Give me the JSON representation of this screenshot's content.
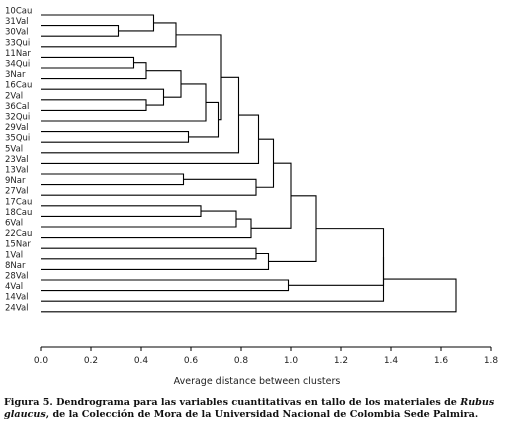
{
  "chart_data": {
    "type": "dendrogram",
    "xlabel": "Average distance between clusters",
    "xlim": [
      0,
      1.8
    ],
    "xticks": [
      "0.0",
      "0.2",
      "0.4",
      "0.6",
      "0.8",
      "1.0",
      "1.2",
      "1.4",
      "1.6",
      "1.8"
    ],
    "leaves": [
      "10Cau",
      "31Val",
      "30Val",
      "33Qui",
      "11Nar",
      "34Qui",
      "3Nar",
      "16Cau",
      "2Val",
      "36Cal",
      "32Qui",
      "29Val",
      "35Qui",
      "5Val",
      "23Val",
      "13Val",
      "9Nar",
      "27Val",
      "17Cau",
      "18Cau",
      "6Val",
      "22Cau",
      "15Nar",
      "1Val",
      "8Nar",
      "28Val",
      "4Val",
      "14Val",
      "24Val"
    ],
    "merges": [
      {
        "id": "m2V36",
        "children": [
          "2Val",
          "36Cal"
        ],
        "height": 0.42
      },
      {
        "id": "m31_30",
        "children": [
          "31Val",
          "30Val"
        ],
        "height": 0.31
      },
      {
        "id": "m11_34",
        "children": [
          "11Nar",
          "34Qui"
        ],
        "height": 0.37
      },
      {
        "id": "m10",
        "children": [
          "10Cau",
          "m31_30"
        ],
        "height": 0.45
      },
      {
        "id": "m3",
        "children": [
          "m11_34",
          "3Nar"
        ],
        "height": 0.42
      },
      {
        "id": "m16",
        "children": [
          "16Cau",
          "m2V36"
        ],
        "height": 0.49
      },
      {
        "id": "mg",
        "children": [
          "m3",
          "m16"
        ],
        "height": 0.56
      },
      {
        "id": "m10b",
        "children": [
          "m10",
          "33Qui"
        ],
        "height": 0.54
      },
      {
        "id": "m29_35",
        "children": [
          "29Val",
          "35Qui"
        ],
        "height": 0.59
      },
      {
        "id": "m13_9",
        "children": [
          "13Val",
          "9Nar"
        ],
        "height": 0.57
      },
      {
        "id": "m17_18",
        "children": [
          "17Cau",
          "18Cau"
        ],
        "height": 0.64
      },
      {
        "id": "mgB",
        "children": [
          "mg",
          "32Qui"
        ],
        "height": 0.66
      },
      {
        "id": "mgC",
        "children": [
          "mgB",
          "m29_35"
        ],
        "height": 0.71
      },
      {
        "id": "mA",
        "children": [
          "m10b",
          "mgC"
        ],
        "height": 0.72
      },
      {
        "id": "mk",
        "children": [
          "m17_18",
          "6Val"
        ],
        "height": 0.78
      },
      {
        "id": "mA2",
        "children": [
          "mA",
          "5Val"
        ],
        "height": 0.79
      },
      {
        "id": "mk2",
        "children": [
          "mk",
          "22Cau"
        ],
        "height": 0.84
      },
      {
        "id": "m13b",
        "children": [
          "m13_9",
          "27Val"
        ],
        "height": 0.86
      },
      {
        "id": "m15_1",
        "children": [
          "15Nar",
          "1Val"
        ],
        "height": 0.86
      },
      {
        "id": "mA3",
        "children": [
          "mA2",
          "23Val"
        ],
        "height": 0.87
      },
      {
        "id": "m15b",
        "children": [
          "m15_1",
          "8Nar"
        ],
        "height": 0.91
      },
      {
        "id": "mAt",
        "children": [
          "mA3",
          "m13b"
        ],
        "height": 0.93
      },
      {
        "id": "mAtk",
        "children": [
          "mAt",
          "mk2"
        ],
        "height": 1.0
      },
      {
        "id": "m28_4",
        "children": [
          "28Val",
          "4Val"
        ],
        "height": 0.99
      },
      {
        "id": "mH",
        "children": [
          "mAtk",
          "m15b"
        ],
        "height": 1.1
      },
      {
        "id": "mH2",
        "children": [
          "mH",
          "m28_4"
        ],
        "height": 1.37
      },
      {
        "id": "mH3",
        "children": [
          "mH2",
          "14Val"
        ],
        "height": 1.37
      },
      {
        "id": "mRoot",
        "children": [
          "mH3",
          "24Val"
        ],
        "height": 1.66
      }
    ]
  },
  "caption": {
    "prefix": "Figura 5. Dendrograma para las variables cuantitativas en tallo de los materiales de ",
    "species": "Rubus glaucus",
    "suffix": ", de la Colección de Mora de la Universidad Nacional de Colombia Sede Palmira."
  }
}
